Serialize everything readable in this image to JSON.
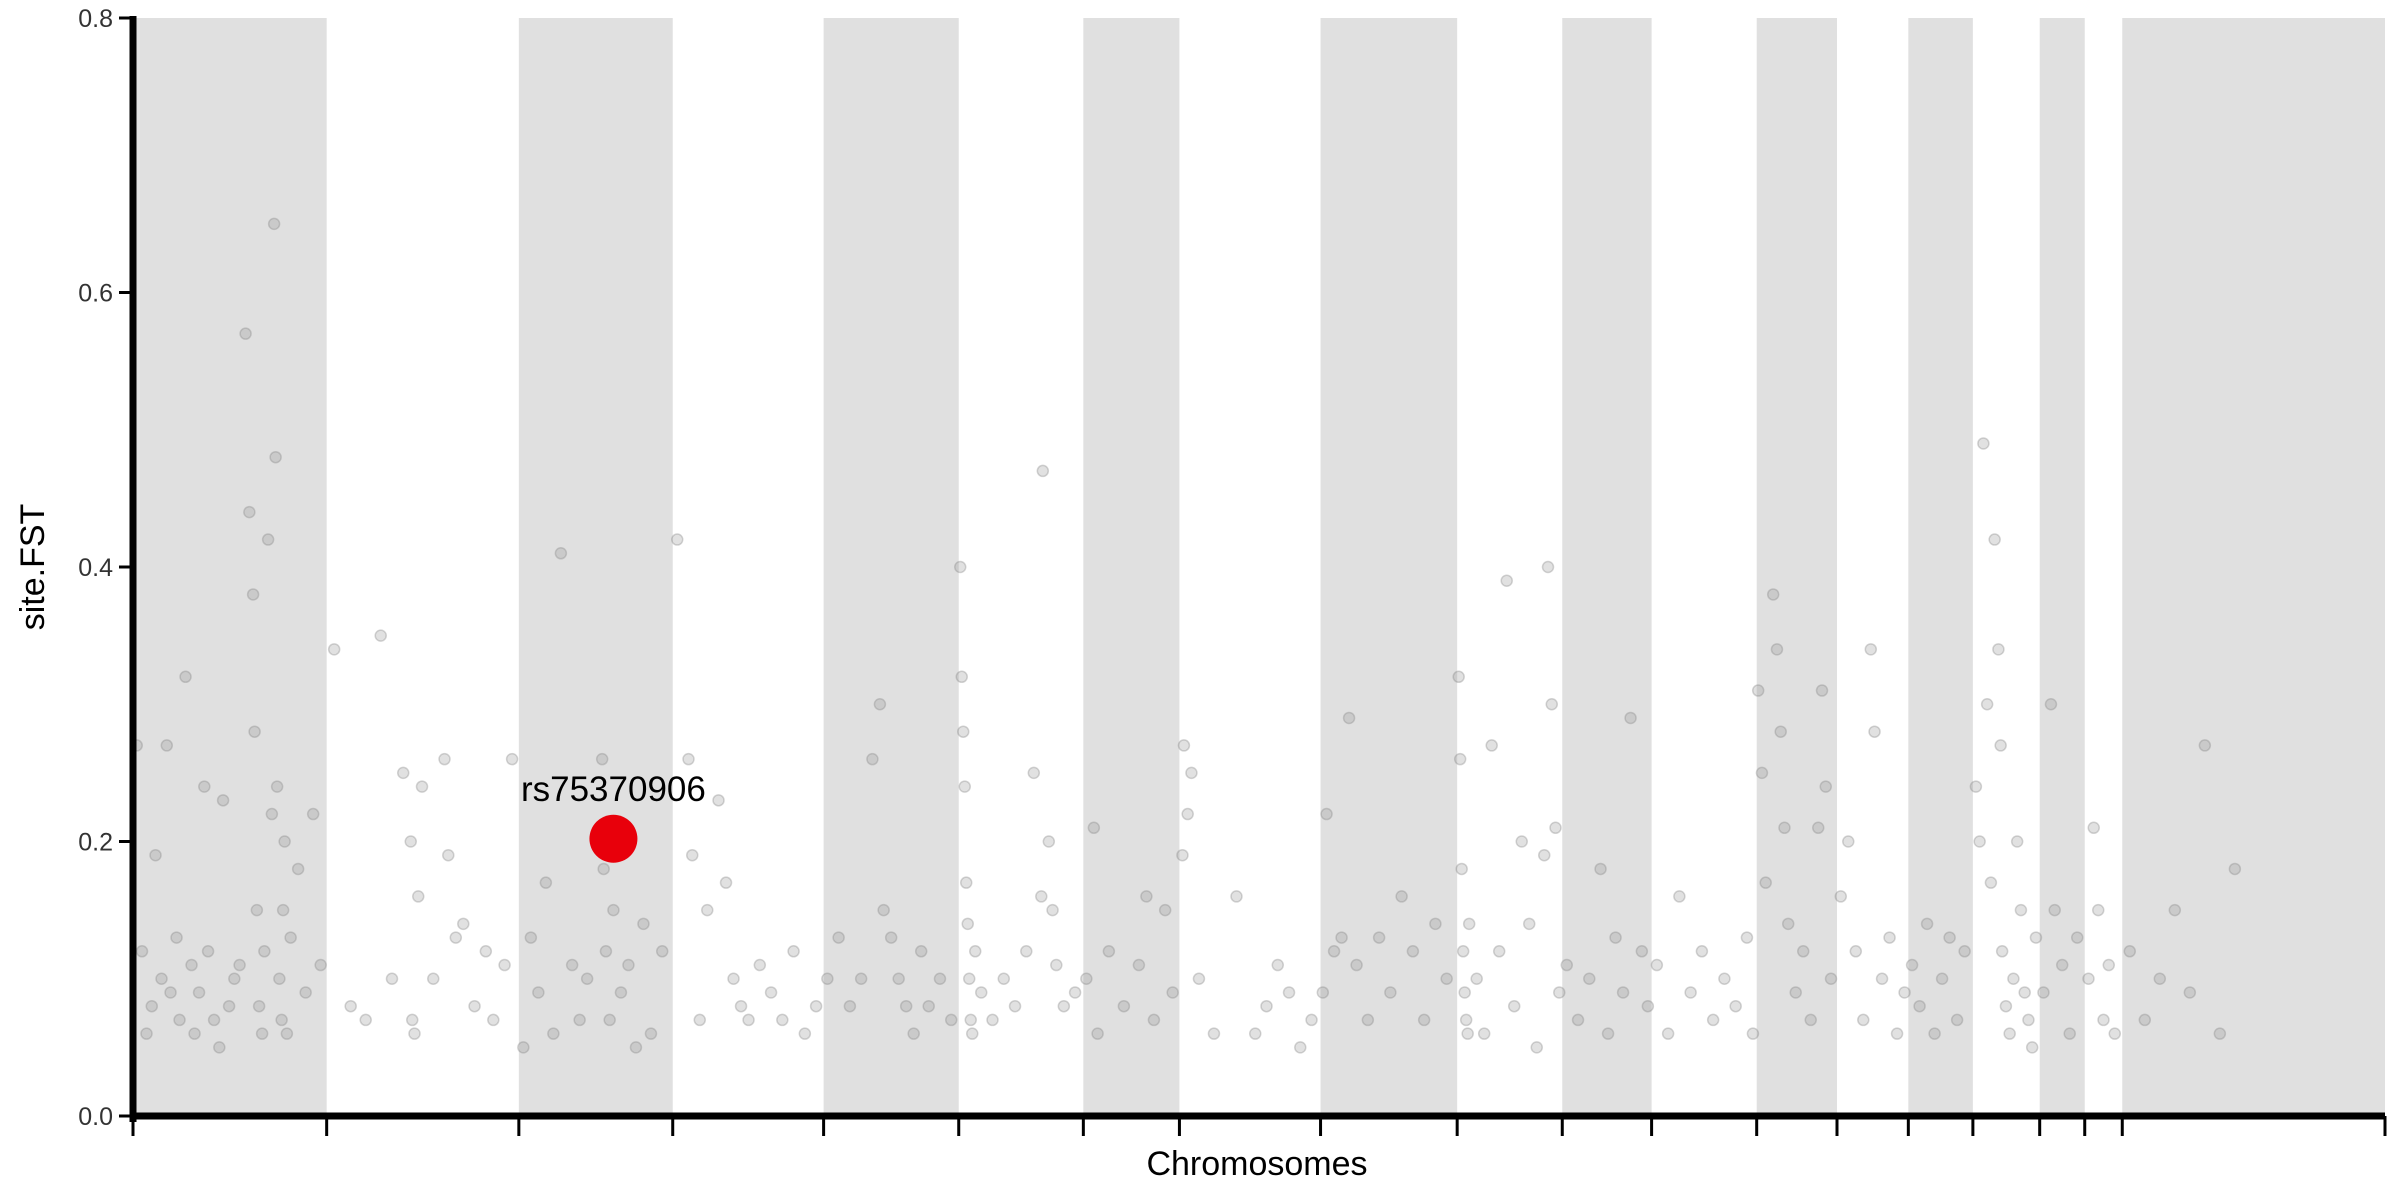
{
  "chart_data": {
    "type": "scatter",
    "title": "",
    "xlabel": "Chromosomes",
    "ylabel": "site.FST",
    "xlim": [
      0,
      3000
    ],
    "ylim": [
      0,
      0.8
    ],
    "y_ticks": [
      0.0,
      0.2,
      0.4,
      0.6,
      0.8
    ],
    "y_tick_labels": [
      "0.0",
      "0.2",
      "0.4",
      "0.6",
      "0.8"
    ],
    "x_tick_labels": [],
    "grid": false,
    "legend": "none",
    "chromosome_boundaries": [
      0,
      258,
      514,
      719,
      920,
      1100,
      1266,
      1394,
      1582,
      1764,
      1904,
      2023,
      2163,
      2270,
      2365,
      2451,
      2540,
      2600,
      2650,
      3000
    ],
    "shaded_chromosomes": [
      1,
      3,
      5,
      7,
      9,
      11,
      13,
      15,
      17,
      19
    ],
    "colors": {
      "shade": "#e0e0e0",
      "point": "#888888",
      "highlight": "#e8000b",
      "axis": "#000000"
    },
    "points": [
      {
        "x": 5,
        "y": 0.27
      },
      {
        "x": 12,
        "y": 0.12
      },
      {
        "x": 18,
        "y": 0.06
      },
      {
        "x": 25,
        "y": 0.08
      },
      {
        "x": 30,
        "y": 0.19
      },
      {
        "x": 38,
        "y": 0.1
      },
      {
        "x": 45,
        "y": 0.27
      },
      {
        "x": 50,
        "y": 0.09
      },
      {
        "x": 58,
        "y": 0.13
      },
      {
        "x": 62,
        "y": 0.07
      },
      {
        "x": 70,
        "y": 0.32
      },
      {
        "x": 78,
        "y": 0.11
      },
      {
        "x": 82,
        "y": 0.06
      },
      {
        "x": 88,
        "y": 0.09
      },
      {
        "x": 95,
        "y": 0.24
      },
      {
        "x": 100,
        "y": 0.12
      },
      {
        "x": 108,
        "y": 0.07
      },
      {
        "x": 115,
        "y": 0.05
      },
      {
        "x": 120,
        "y": 0.23
      },
      {
        "x": 128,
        "y": 0.08
      },
      {
        "x": 135,
        "y": 0.1
      },
      {
        "x": 142,
        "y": 0.11
      },
      {
        "x": 150,
        "y": 0.57
      },
      {
        "x": 155,
        "y": 0.44
      },
      {
        "x": 160,
        "y": 0.38
      },
      {
        "x": 162,
        "y": 0.28
      },
      {
        "x": 165,
        "y": 0.15
      },
      {
        "x": 168,
        "y": 0.08
      },
      {
        "x": 172,
        "y": 0.06
      },
      {
        "x": 175,
        "y": 0.12
      },
      {
        "x": 180,
        "y": 0.42
      },
      {
        "x": 185,
        "y": 0.22
      },
      {
        "x": 188,
        "y": 0.65
      },
      {
        "x": 190,
        "y": 0.48
      },
      {
        "x": 192,
        "y": 0.24
      },
      {
        "x": 195,
        "y": 0.1
      },
      {
        "x": 198,
        "y": 0.07
      },
      {
        "x": 200,
        "y": 0.15
      },
      {
        "x": 202,
        "y": 0.2
      },
      {
        "x": 205,
        "y": 0.06
      },
      {
        "x": 210,
        "y": 0.13
      },
      {
        "x": 220,
        "y": 0.18
      },
      {
        "x": 230,
        "y": 0.09
      },
      {
        "x": 240,
        "y": 0.22
      },
      {
        "x": 250,
        "y": 0.11
      },
      {
        "x": 268,
        "y": 0.34
      },
      {
        "x": 290,
        "y": 0.08
      },
      {
        "x": 310,
        "y": 0.07
      },
      {
        "x": 330,
        "y": 0.35
      },
      {
        "x": 345,
        "y": 0.1
      },
      {
        "x": 360,
        "y": 0.25
      },
      {
        "x": 370,
        "y": 0.2
      },
      {
        "x": 372,
        "y": 0.07
      },
      {
        "x": 375,
        "y": 0.06
      },
      {
        "x": 380,
        "y": 0.16
      },
      {
        "x": 385,
        "y": 0.24
      },
      {
        "x": 400,
        "y": 0.1
      },
      {
        "x": 415,
        "y": 0.26
      },
      {
        "x": 420,
        "y": 0.19
      },
      {
        "x": 430,
        "y": 0.13
      },
      {
        "x": 440,
        "y": 0.14
      },
      {
        "x": 455,
        "y": 0.08
      },
      {
        "x": 470,
        "y": 0.12
      },
      {
        "x": 480,
        "y": 0.07
      },
      {
        "x": 495,
        "y": 0.11
      },
      {
        "x": 505,
        "y": 0.26
      },
      {
        "x": 520,
        "y": 0.05
      },
      {
        "x": 530,
        "y": 0.13
      },
      {
        "x": 540,
        "y": 0.09
      },
      {
        "x": 550,
        "y": 0.17
      },
      {
        "x": 560,
        "y": 0.06
      },
      {
        "x": 570,
        "y": 0.41
      },
      {
        "x": 585,
        "y": 0.11
      },
      {
        "x": 595,
        "y": 0.07
      },
      {
        "x": 605,
        "y": 0.1
      },
      {
        "x": 625,
        "y": 0.26
      },
      {
        "x": 627,
        "y": 0.18
      },
      {
        "x": 630,
        "y": 0.12
      },
      {
        "x": 635,
        "y": 0.07
      },
      {
        "x": 640,
        "y": 0.15
      },
      {
        "x": 650,
        "y": 0.09
      },
      {
        "x": 660,
        "y": 0.11
      },
      {
        "x": 670,
        "y": 0.05
      },
      {
        "x": 680,
        "y": 0.14
      },
      {
        "x": 690,
        "y": 0.06
      },
      {
        "x": 705,
        "y": 0.12
      },
      {
        "x": 725,
        "y": 0.42
      },
      {
        "x": 740,
        "y": 0.26
      },
      {
        "x": 745,
        "y": 0.19
      },
      {
        "x": 755,
        "y": 0.07
      },
      {
        "x": 765,
        "y": 0.15
      },
      {
        "x": 780,
        "y": 0.23
      },
      {
        "x": 790,
        "y": 0.17
      },
      {
        "x": 800,
        "y": 0.1
      },
      {
        "x": 810,
        "y": 0.08
      },
      {
        "x": 820,
        "y": 0.07
      },
      {
        "x": 835,
        "y": 0.11
      },
      {
        "x": 850,
        "y": 0.09
      },
      {
        "x": 865,
        "y": 0.07
      },
      {
        "x": 880,
        "y": 0.12
      },
      {
        "x": 895,
        "y": 0.06
      },
      {
        "x": 910,
        "y": 0.08
      },
      {
        "x": 925,
        "y": 0.1
      },
      {
        "x": 940,
        "y": 0.13
      },
      {
        "x": 955,
        "y": 0.08
      },
      {
        "x": 970,
        "y": 0.1
      },
      {
        "x": 985,
        "y": 0.26
      },
      {
        "x": 995,
        "y": 0.3
      },
      {
        "x": 1000,
        "y": 0.15
      },
      {
        "x": 1010,
        "y": 0.13
      },
      {
        "x": 1020,
        "y": 0.1
      },
      {
        "x": 1030,
        "y": 0.08
      },
      {
        "x": 1040,
        "y": 0.06
      },
      {
        "x": 1050,
        "y": 0.12
      },
      {
        "x": 1060,
        "y": 0.08
      },
      {
        "x": 1075,
        "y": 0.1
      },
      {
        "x": 1090,
        "y": 0.07
      },
      {
        "x": 1102,
        "y": 0.4
      },
      {
        "x": 1104,
        "y": 0.32
      },
      {
        "x": 1106,
        "y": 0.28
      },
      {
        "x": 1108,
        "y": 0.24
      },
      {
        "x": 1110,
        "y": 0.17
      },
      {
        "x": 1112,
        "y": 0.14
      },
      {
        "x": 1114,
        "y": 0.1
      },
      {
        "x": 1116,
        "y": 0.07
      },
      {
        "x": 1118,
        "y": 0.06
      },
      {
        "x": 1122,
        "y": 0.12
      },
      {
        "x": 1130,
        "y": 0.09
      },
      {
        "x": 1145,
        "y": 0.07
      },
      {
        "x": 1160,
        "y": 0.1
      },
      {
        "x": 1175,
        "y": 0.08
      },
      {
        "x": 1190,
        "y": 0.12
      },
      {
        "x": 1200,
        "y": 0.25
      },
      {
        "x": 1210,
        "y": 0.16
      },
      {
        "x": 1212,
        "y": 0.47
      },
      {
        "x": 1220,
        "y": 0.2
      },
      {
        "x": 1225,
        "y": 0.15
      },
      {
        "x": 1230,
        "y": 0.11
      },
      {
        "x": 1240,
        "y": 0.08
      },
      {
        "x": 1255,
        "y": 0.09
      },
      {
        "x": 1270,
        "y": 0.1
      },
      {
        "x": 1280,
        "y": 0.21
      },
      {
        "x": 1285,
        "y": 0.06
      },
      {
        "x": 1300,
        "y": 0.12
      },
      {
        "x": 1320,
        "y": 0.08
      },
      {
        "x": 1340,
        "y": 0.11
      },
      {
        "x": 1350,
        "y": 0.16
      },
      {
        "x": 1360,
        "y": 0.07
      },
      {
        "x": 1375,
        "y": 0.15
      },
      {
        "x": 1385,
        "y": 0.09
      },
      {
        "x": 1398,
        "y": 0.19
      },
      {
        "x": 1400,
        "y": 0.27
      },
      {
        "x": 1405,
        "y": 0.22
      },
      {
        "x": 1410,
        "y": 0.25
      },
      {
        "x": 1420,
        "y": 0.1
      },
      {
        "x": 1440,
        "y": 0.06
      },
      {
        "x": 1470,
        "y": 0.16
      },
      {
        "x": 1495,
        "y": 0.06
      },
      {
        "x": 1510,
        "y": 0.08
      },
      {
        "x": 1525,
        "y": 0.11
      },
      {
        "x": 1540,
        "y": 0.09
      },
      {
        "x": 1555,
        "y": 0.05
      },
      {
        "x": 1570,
        "y": 0.07
      },
      {
        "x": 1585,
        "y": 0.09
      },
      {
        "x": 1590,
        "y": 0.22
      },
      {
        "x": 1600,
        "y": 0.12
      },
      {
        "x": 1610,
        "y": 0.13
      },
      {
        "x": 1620,
        "y": 0.29
      },
      {
        "x": 1630,
        "y": 0.11
      },
      {
        "x": 1645,
        "y": 0.07
      },
      {
        "x": 1660,
        "y": 0.13
      },
      {
        "x": 1675,
        "y": 0.09
      },
      {
        "x": 1690,
        "y": 0.16
      },
      {
        "x": 1705,
        "y": 0.12
      },
      {
        "x": 1720,
        "y": 0.07
      },
      {
        "x": 1735,
        "y": 0.14
      },
      {
        "x": 1750,
        "y": 0.1
      },
      {
        "x": 1766,
        "y": 0.32
      },
      {
        "x": 1768,
        "y": 0.26
      },
      {
        "x": 1770,
        "y": 0.18
      },
      {
        "x": 1772,
        "y": 0.12
      },
      {
        "x": 1774,
        "y": 0.09
      },
      {
        "x": 1776,
        "y": 0.07
      },
      {
        "x": 1778,
        "y": 0.06
      },
      {
        "x": 1780,
        "y": 0.14
      },
      {
        "x": 1790,
        "y": 0.1
      },
      {
        "x": 1800,
        "y": 0.06
      },
      {
        "x": 1810,
        "y": 0.27
      },
      {
        "x": 1820,
        "y": 0.12
      },
      {
        "x": 1830,
        "y": 0.39
      },
      {
        "x": 1840,
        "y": 0.08
      },
      {
        "x": 1850,
        "y": 0.2
      },
      {
        "x": 1860,
        "y": 0.14
      },
      {
        "x": 1870,
        "y": 0.05
      },
      {
        "x": 1880,
        "y": 0.19
      },
      {
        "x": 1885,
        "y": 0.4
      },
      {
        "x": 1890,
        "y": 0.3
      },
      {
        "x": 1895,
        "y": 0.21
      },
      {
        "x": 1900,
        "y": 0.09
      },
      {
        "x": 1910,
        "y": 0.11
      },
      {
        "x": 1925,
        "y": 0.07
      },
      {
        "x": 1940,
        "y": 0.1
      },
      {
        "x": 1955,
        "y": 0.18
      },
      {
        "x": 1965,
        "y": 0.06
      },
      {
        "x": 1975,
        "y": 0.13
      },
      {
        "x": 1985,
        "y": 0.09
      },
      {
        "x": 1995,
        "y": 0.29
      },
      {
        "x": 2010,
        "y": 0.12
      },
      {
        "x": 2018,
        "y": 0.08
      },
      {
        "x": 2030,
        "y": 0.11
      },
      {
        "x": 2045,
        "y": 0.06
      },
      {
        "x": 2060,
        "y": 0.16
      },
      {
        "x": 2075,
        "y": 0.09
      },
      {
        "x": 2090,
        "y": 0.12
      },
      {
        "x": 2105,
        "y": 0.07
      },
      {
        "x": 2120,
        "y": 0.1
      },
      {
        "x": 2135,
        "y": 0.08
      },
      {
        "x": 2150,
        "y": 0.13
      },
      {
        "x": 2158,
        "y": 0.06
      },
      {
        "x": 2165,
        "y": 0.31
      },
      {
        "x": 2170,
        "y": 0.25
      },
      {
        "x": 2175,
        "y": 0.17
      },
      {
        "x": 2185,
        "y": 0.38
      },
      {
        "x": 2190,
        "y": 0.34
      },
      {
        "x": 2195,
        "y": 0.28
      },
      {
        "x": 2200,
        "y": 0.21
      },
      {
        "x": 2205,
        "y": 0.14
      },
      {
        "x": 2215,
        "y": 0.09
      },
      {
        "x": 2225,
        "y": 0.12
      },
      {
        "x": 2235,
        "y": 0.07
      },
      {
        "x": 2245,
        "y": 0.21
      },
      {
        "x": 2250,
        "y": 0.31
      },
      {
        "x": 2255,
        "y": 0.24
      },
      {
        "x": 2262,
        "y": 0.1
      },
      {
        "x": 2275,
        "y": 0.16
      },
      {
        "x": 2285,
        "y": 0.2
      },
      {
        "x": 2295,
        "y": 0.12
      },
      {
        "x": 2305,
        "y": 0.07
      },
      {
        "x": 2315,
        "y": 0.34
      },
      {
        "x": 2320,
        "y": 0.28
      },
      {
        "x": 2330,
        "y": 0.1
      },
      {
        "x": 2340,
        "y": 0.13
      },
      {
        "x": 2350,
        "y": 0.06
      },
      {
        "x": 2360,
        "y": 0.09
      },
      {
        "x": 2370,
        "y": 0.11
      },
      {
        "x": 2380,
        "y": 0.08
      },
      {
        "x": 2390,
        "y": 0.14
      },
      {
        "x": 2400,
        "y": 0.06
      },
      {
        "x": 2410,
        "y": 0.1
      },
      {
        "x": 2420,
        "y": 0.13
      },
      {
        "x": 2430,
        "y": 0.07
      },
      {
        "x": 2440,
        "y": 0.12
      },
      {
        "x": 2455,
        "y": 0.24
      },
      {
        "x": 2460,
        "y": 0.2
      },
      {
        "x": 2465,
        "y": 0.49
      },
      {
        "x": 2470,
        "y": 0.3
      },
      {
        "x": 2475,
        "y": 0.17
      },
      {
        "x": 2480,
        "y": 0.42
      },
      {
        "x": 2485,
        "y": 0.34
      },
      {
        "x": 2488,
        "y": 0.27
      },
      {
        "x": 2490,
        "y": 0.12
      },
      {
        "x": 2495,
        "y": 0.08
      },
      {
        "x": 2500,
        "y": 0.06
      },
      {
        "x": 2505,
        "y": 0.1
      },
      {
        "x": 2510,
        "y": 0.2
      },
      {
        "x": 2515,
        "y": 0.15
      },
      {
        "x": 2520,
        "y": 0.09
      },
      {
        "x": 2525,
        "y": 0.07
      },
      {
        "x": 2530,
        "y": 0.05
      },
      {
        "x": 2535,
        "y": 0.13
      },
      {
        "x": 2545,
        "y": 0.09
      },
      {
        "x": 2555,
        "y": 0.3
      },
      {
        "x": 2560,
        "y": 0.15
      },
      {
        "x": 2570,
        "y": 0.11
      },
      {
        "x": 2580,
        "y": 0.06
      },
      {
        "x": 2590,
        "y": 0.13
      },
      {
        "x": 2605,
        "y": 0.1
      },
      {
        "x": 2612,
        "y": 0.21
      },
      {
        "x": 2618,
        "y": 0.15
      },
      {
        "x": 2625,
        "y": 0.07
      },
      {
        "x": 2632,
        "y": 0.11
      },
      {
        "x": 2640,
        "y": 0.06
      },
      {
        "x": 2660,
        "y": 0.12
      },
      {
        "x": 2680,
        "y": 0.07
      },
      {
        "x": 2700,
        "y": 0.1
      },
      {
        "x": 2720,
        "y": 0.15
      },
      {
        "x": 2740,
        "y": 0.09
      },
      {
        "x": 2760,
        "y": 0.27
      },
      {
        "x": 2780,
        "y": 0.06
      },
      {
        "x": 2800,
        "y": 0.18
      }
    ],
    "highlight": {
      "label": "rs75370906",
      "x": 640,
      "y": 0.202
    }
  }
}
